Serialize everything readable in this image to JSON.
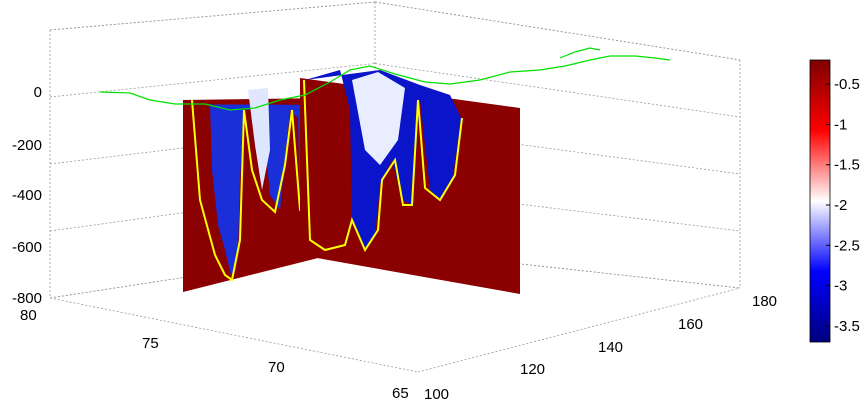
{
  "chart_data": {
    "type": "heatmap",
    "subtype": "3d-slice-volume",
    "title": "",
    "xlabel": "",
    "ylabel": "",
    "zlabel": "",
    "axes": {
      "z_ticks": [
        {
          "value": 0,
          "label": "0"
        },
        {
          "value": -200,
          "label": "-200"
        },
        {
          "value": -400,
          "label": "-400"
        },
        {
          "value": -600,
          "label": "-600"
        },
        {
          "value": -800,
          "label": "-800"
        }
      ],
      "left_ticks": [
        {
          "value": 80,
          "label": "80"
        },
        {
          "value": 75,
          "label": "75"
        },
        {
          "value": 70,
          "label": "70"
        },
        {
          "value": 65,
          "label": "65"
        }
      ],
      "right_ticks": [
        {
          "value": 100,
          "label": "100"
        },
        {
          "value": 120,
          "label": "120"
        },
        {
          "value": 140,
          "label": "140"
        },
        {
          "value": 160,
          "label": "160"
        },
        {
          "value": 180,
          "label": "180"
        }
      ],
      "zlim": [
        -800,
        0
      ],
      "left_lim": [
        65,
        80
      ],
      "right_lim": [
        100,
        180
      ],
      "grid": true
    },
    "colorbar": {
      "ticks": [
        {
          "value": -0.5,
          "label": "-0.5"
        },
        {
          "value": -1,
          "label": "-1"
        },
        {
          "value": -1.5,
          "label": "-1.5"
        },
        {
          "value": -2,
          "label": "-2"
        },
        {
          "value": -2.5,
          "label": "-2.5"
        },
        {
          "value": -3,
          "label": "-3"
        },
        {
          "value": -3.5,
          "label": "-3.5"
        }
      ],
      "clim": [
        -3.7,
        -0.2
      ],
      "colormap_stops": [
        "#7f0000",
        "#ff0000",
        "#ffffff",
        "#0000ff",
        "#00007f"
      ],
      "placement": "right"
    },
    "colors": {
      "dominant_fill": "#8b0000",
      "contour": "#ffff00",
      "coastline": "#00ff00"
    }
  }
}
